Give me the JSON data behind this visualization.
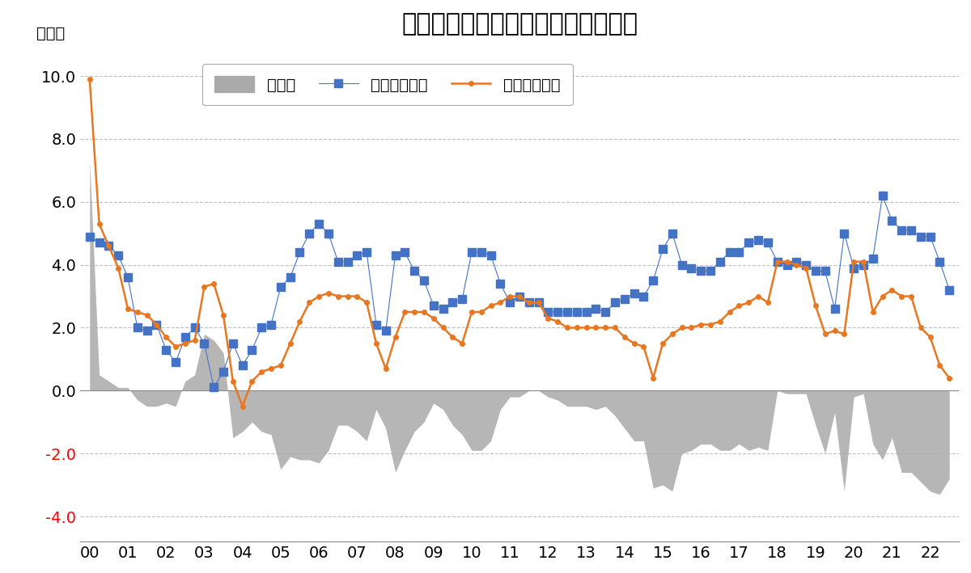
{
  "title": "ドイツの対内・対外直接投資の推移",
  "ylabel": "（％）",
  "ylim": [
    -4.8,
    10.8
  ],
  "yticks": [
    -4.0,
    -2.0,
    0.0,
    2.0,
    4.0,
    6.0,
    8.0,
    10.0
  ],
  "ytick_labels_red": [
    -4.0,
    -2.0
  ],
  "background_color": "#ffffff",
  "grid_color": "#b0b0b0",
  "legend_labels": [
    "ネット",
    "対外直接投資",
    "対内直接投資"
  ],
  "outward_color": "#4472c4",
  "inward_color": "#e87722",
  "net_color": "#aaaaaa",
  "outward_fdi": [
    4.9,
    4.7,
    4.6,
    4.3,
    3.6,
    2.0,
    1.9,
    2.1,
    1.3,
    0.9,
    1.7,
    2.0,
    1.5,
    0.1,
    0.6,
    1.5,
    0.8,
    1.3,
    2.0,
    2.1,
    3.3,
    3.6,
    4.4,
    5.0,
    5.3,
    5.0,
    4.1,
    4.1,
    4.3,
    4.4,
    2.1,
    1.9,
    4.3,
    4.4,
    3.8,
    3.5,
    2.7,
    2.6,
    2.8,
    2.9,
    4.4,
    4.4,
    4.3,
    3.4,
    2.8,
    3.0,
    2.8,
    2.8,
    2.5,
    2.5,
    2.5,
    2.5,
    2.5,
    2.6,
    2.5,
    2.8,
    2.9,
    3.1,
    3.0,
    3.5,
    4.5,
    5.0,
    4.0,
    3.9,
    3.8,
    3.8,
    4.1,
    4.4,
    4.4,
    4.7,
    4.8,
    4.7,
    4.1,
    4.0,
    4.1,
    4.0,
    3.8,
    3.8,
    2.6,
    5.0,
    3.9,
    4.0,
    4.2,
    6.2,
    5.4,
    5.1,
    5.1,
    4.9,
    4.9,
    4.1,
    3.2,
    null
  ],
  "inward_fdi": [
    9.9,
    5.3,
    4.6,
    3.9,
    2.6,
    2.5,
    2.4,
    2.1,
    1.7,
    1.4,
    1.5,
    1.6,
    3.3,
    3.4,
    2.4,
    0.3,
    -0.5,
    0.3,
    0.6,
    0.7,
    0.8,
    1.5,
    2.2,
    2.8,
    3.0,
    3.1,
    3.0,
    3.0,
    3.0,
    2.8,
    1.5,
    0.7,
    1.7,
    2.5,
    2.5,
    2.5,
    2.3,
    2.0,
    1.7,
    1.5,
    2.5,
    2.5,
    2.7,
    2.8,
    3.0,
    3.0,
    2.8,
    2.8,
    2.3,
    2.2,
    2.0,
    2.0,
    2.0,
    2.0,
    2.0,
    2.0,
    1.7,
    1.5,
    1.4,
    0.4,
    1.5,
    1.8,
    2.0,
    2.0,
    2.1,
    2.1,
    2.2,
    2.5,
    2.7,
    2.8,
    3.0,
    2.8,
    4.1,
    4.1,
    4.0,
    3.9,
    2.7,
    1.8,
    1.9,
    1.8,
    4.1,
    4.1,
    2.5,
    3.0,
    3.2,
    3.0,
    3.0,
    2.0,
    1.7,
    0.8,
    0.4,
    null
  ],
  "net_fdi": [
    7.3,
    0.5,
    0.3,
    0.1,
    0.1,
    -0.3,
    -0.5,
    -0.5,
    -0.4,
    -0.5,
    0.3,
    0.5,
    1.8,
    1.6,
    1.2,
    -1.5,
    -1.3,
    -1.0,
    -1.3,
    -1.4,
    -2.5,
    -2.1,
    -2.2,
    -2.2,
    -2.3,
    -1.9,
    -1.1,
    -1.1,
    -1.3,
    -1.6,
    -0.6,
    -1.2,
    -2.6,
    -1.9,
    -1.3,
    -1.0,
    -0.4,
    -0.6,
    -1.1,
    -1.4,
    -1.9,
    -1.9,
    -1.6,
    -0.6,
    -0.2,
    -0.2,
    0.0,
    0.0,
    -0.2,
    -0.3,
    -0.5,
    -0.5,
    -0.5,
    -0.6,
    -0.5,
    -0.8,
    -1.2,
    -1.6,
    -1.6,
    -3.1,
    -3.0,
    -3.2,
    -2.0,
    -1.9,
    -1.7,
    -1.7,
    -1.9,
    -1.9,
    -1.7,
    -1.9,
    -1.8,
    -1.9,
    -0.0,
    -0.1,
    -0.1,
    -0.1,
    -1.1,
    -2.0,
    -0.7,
    -3.2,
    -0.2,
    -0.1,
    -1.7,
    -2.2,
    -1.5,
    -2.6,
    -2.6,
    -2.9,
    -3.2,
    -3.3,
    -2.8,
    null
  ]
}
